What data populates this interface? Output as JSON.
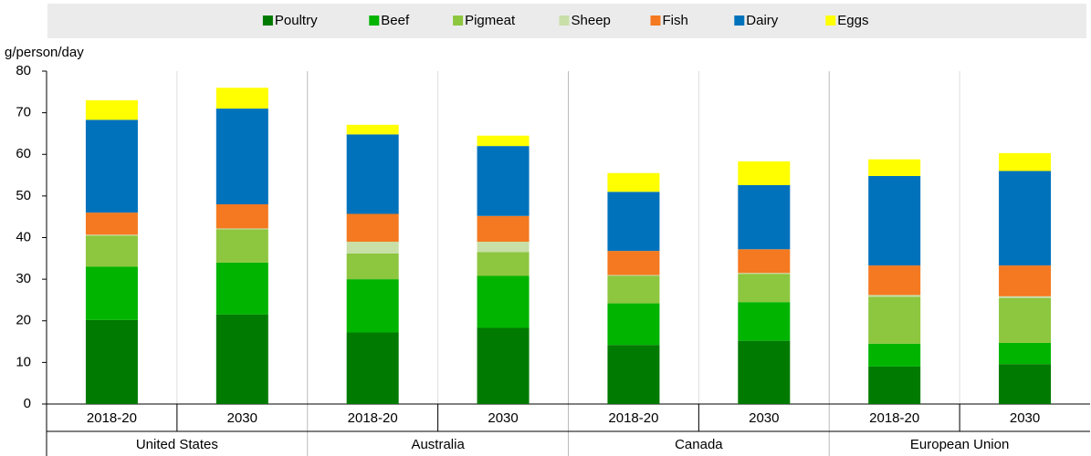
{
  "chart_data": {
    "type": "stacked_bar",
    "y_label": "g/person/day",
    "categories": [
      "2018-20",
      "2030",
      "2018-20",
      "2030",
      "2018-20",
      "2030",
      "2018-20",
      "2030"
    ],
    "groups": [
      "United States",
      "Australia",
      "Canada",
      "European Union"
    ],
    "series": [
      {
        "name": "Poultry",
        "color": "#007a00",
        "values": [
          20.2,
          21.5,
          17.2,
          18.3,
          14.2,
          15.2,
          9,
          9.6
        ]
      },
      {
        "name": "Beef",
        "color": "#00b400",
        "values": [
          12.8,
          12.5,
          12.8,
          12.5,
          10,
          9.3,
          5.5,
          5.1
        ]
      },
      {
        "name": "Pigmeat",
        "color": "#8dc63f",
        "values": [
          7.5,
          8,
          6.2,
          5.7,
          6.6,
          6.8,
          11.3,
          10.8
        ]
      },
      {
        "name": "Sheep",
        "color": "#c8dfa8",
        "values": [
          0.2,
          0.2,
          2.8,
          2.5,
          0.2,
          0.2,
          0.4,
          0.4
        ]
      },
      {
        "name": "Fish",
        "color": "#f47920",
        "values": [
          5.3,
          5.8,
          6.7,
          6.2,
          5.8,
          5.7,
          7.1,
          7.4
        ]
      },
      {
        "name": "Dairy",
        "color": "#0072bc",
        "values": [
          22.3,
          23,
          19.1,
          16.8,
          14.2,
          15.4,
          21.5,
          22.7
        ]
      },
      {
        "name": "Eggs",
        "color": "#ffff00",
        "values": [
          4.7,
          5,
          2.3,
          2.5,
          4.5,
          5.7,
          4,
          4.3
        ]
      }
    ],
    "ylim": [
      0,
      80
    ],
    "yticks": [
      0,
      10,
      20,
      30,
      40,
      50,
      60,
      70,
      80
    ],
    "legend": "top"
  }
}
